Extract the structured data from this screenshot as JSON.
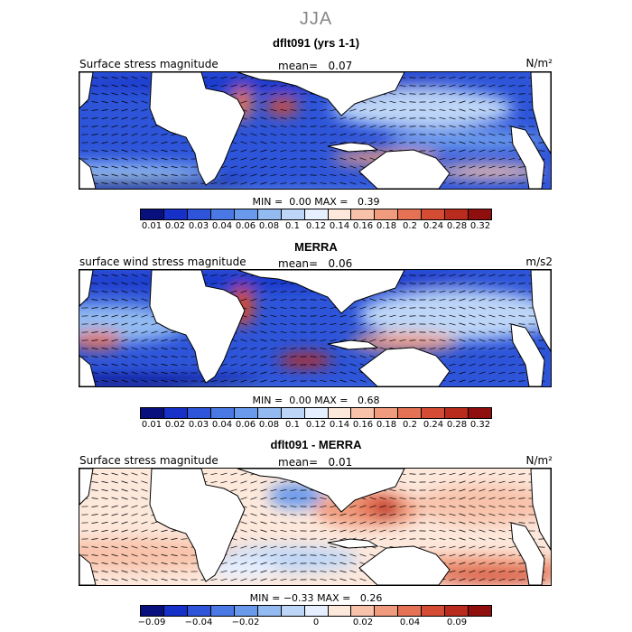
{
  "figure": {
    "season": "JJA"
  },
  "colors": {
    "seq": [
      "#08107e",
      "#1630c8",
      "#2e55d9",
      "#4a78e4",
      "#6a9aec",
      "#93bbf2",
      "#bdd6f7",
      "#e6efff",
      "#fde8dc",
      "#f8c2aa",
      "#f09b7d",
      "#e57254",
      "#d44c33",
      "#b92b1c",
      "#8e0f0d"
    ],
    "diff": [
      "#08107e",
      "#1630c8",
      "#2e55d9",
      "#4a78e4",
      "#6a9aec",
      "#93bbf2",
      "#bdd6f7",
      "#e6efff",
      "#fde8dc",
      "#f8c2aa",
      "#f09b7d",
      "#e57254",
      "#d44c33",
      "#b92b1c",
      "#8e0f0d"
    ],
    "land": "#ffffff",
    "arrow": "#000000"
  },
  "panels": [
    {
      "title": "dflt091 (yrs 1-1)",
      "variable": "Surface stress magnitude",
      "mean_label": "mean=",
      "mean_value": "0.07",
      "units": "N/m²",
      "min_label": "MIN =",
      "min_value": "0.00",
      "max_label": "MAX =",
      "max_value": "0.39",
      "palette": "seq",
      "ticks": [
        "0.01",
        "0.02",
        "0.03",
        "0.04",
        "0.06",
        "0.08",
        "0.1",
        "0.12",
        "0.14",
        "0.16",
        "0.18",
        "0.2",
        "0.24",
        "0.28",
        "0.32"
      ]
    },
    {
      "title": "MERRA",
      "variable": "surface wind stress magnitude",
      "mean_label": "mean=",
      "mean_value": "0.06",
      "units": "m/s2",
      "min_label": "MIN =",
      "min_value": "0.00",
      "max_label": "MAX =",
      "max_value": "0.68",
      "palette": "seq",
      "ticks": [
        "0.01",
        "0.02",
        "0.03",
        "0.04",
        "0.06",
        "0.08",
        "0.1",
        "0.12",
        "0.14",
        "0.16",
        "0.18",
        "0.2",
        "0.24",
        "0.28",
        "0.32"
      ]
    },
    {
      "title": "dflt091 - MERRA",
      "variable": "Surface stress magnitude",
      "mean_label": "mean=",
      "mean_value": "0.01",
      "units": "N/m²",
      "min_label": "MIN =",
      "min_value": "−0.33",
      "max_label": "MAX =",
      "max_value": "0.26",
      "palette": "diff",
      "ticks": [
        "−0.09",
        "",
        "−0.04",
        "",
        "−0.02",
        "",
        "",
        "0",
        "",
        "0.02",
        "",
        "0.04",
        "",
        "0.09",
        ""
      ]
    }
  ]
}
